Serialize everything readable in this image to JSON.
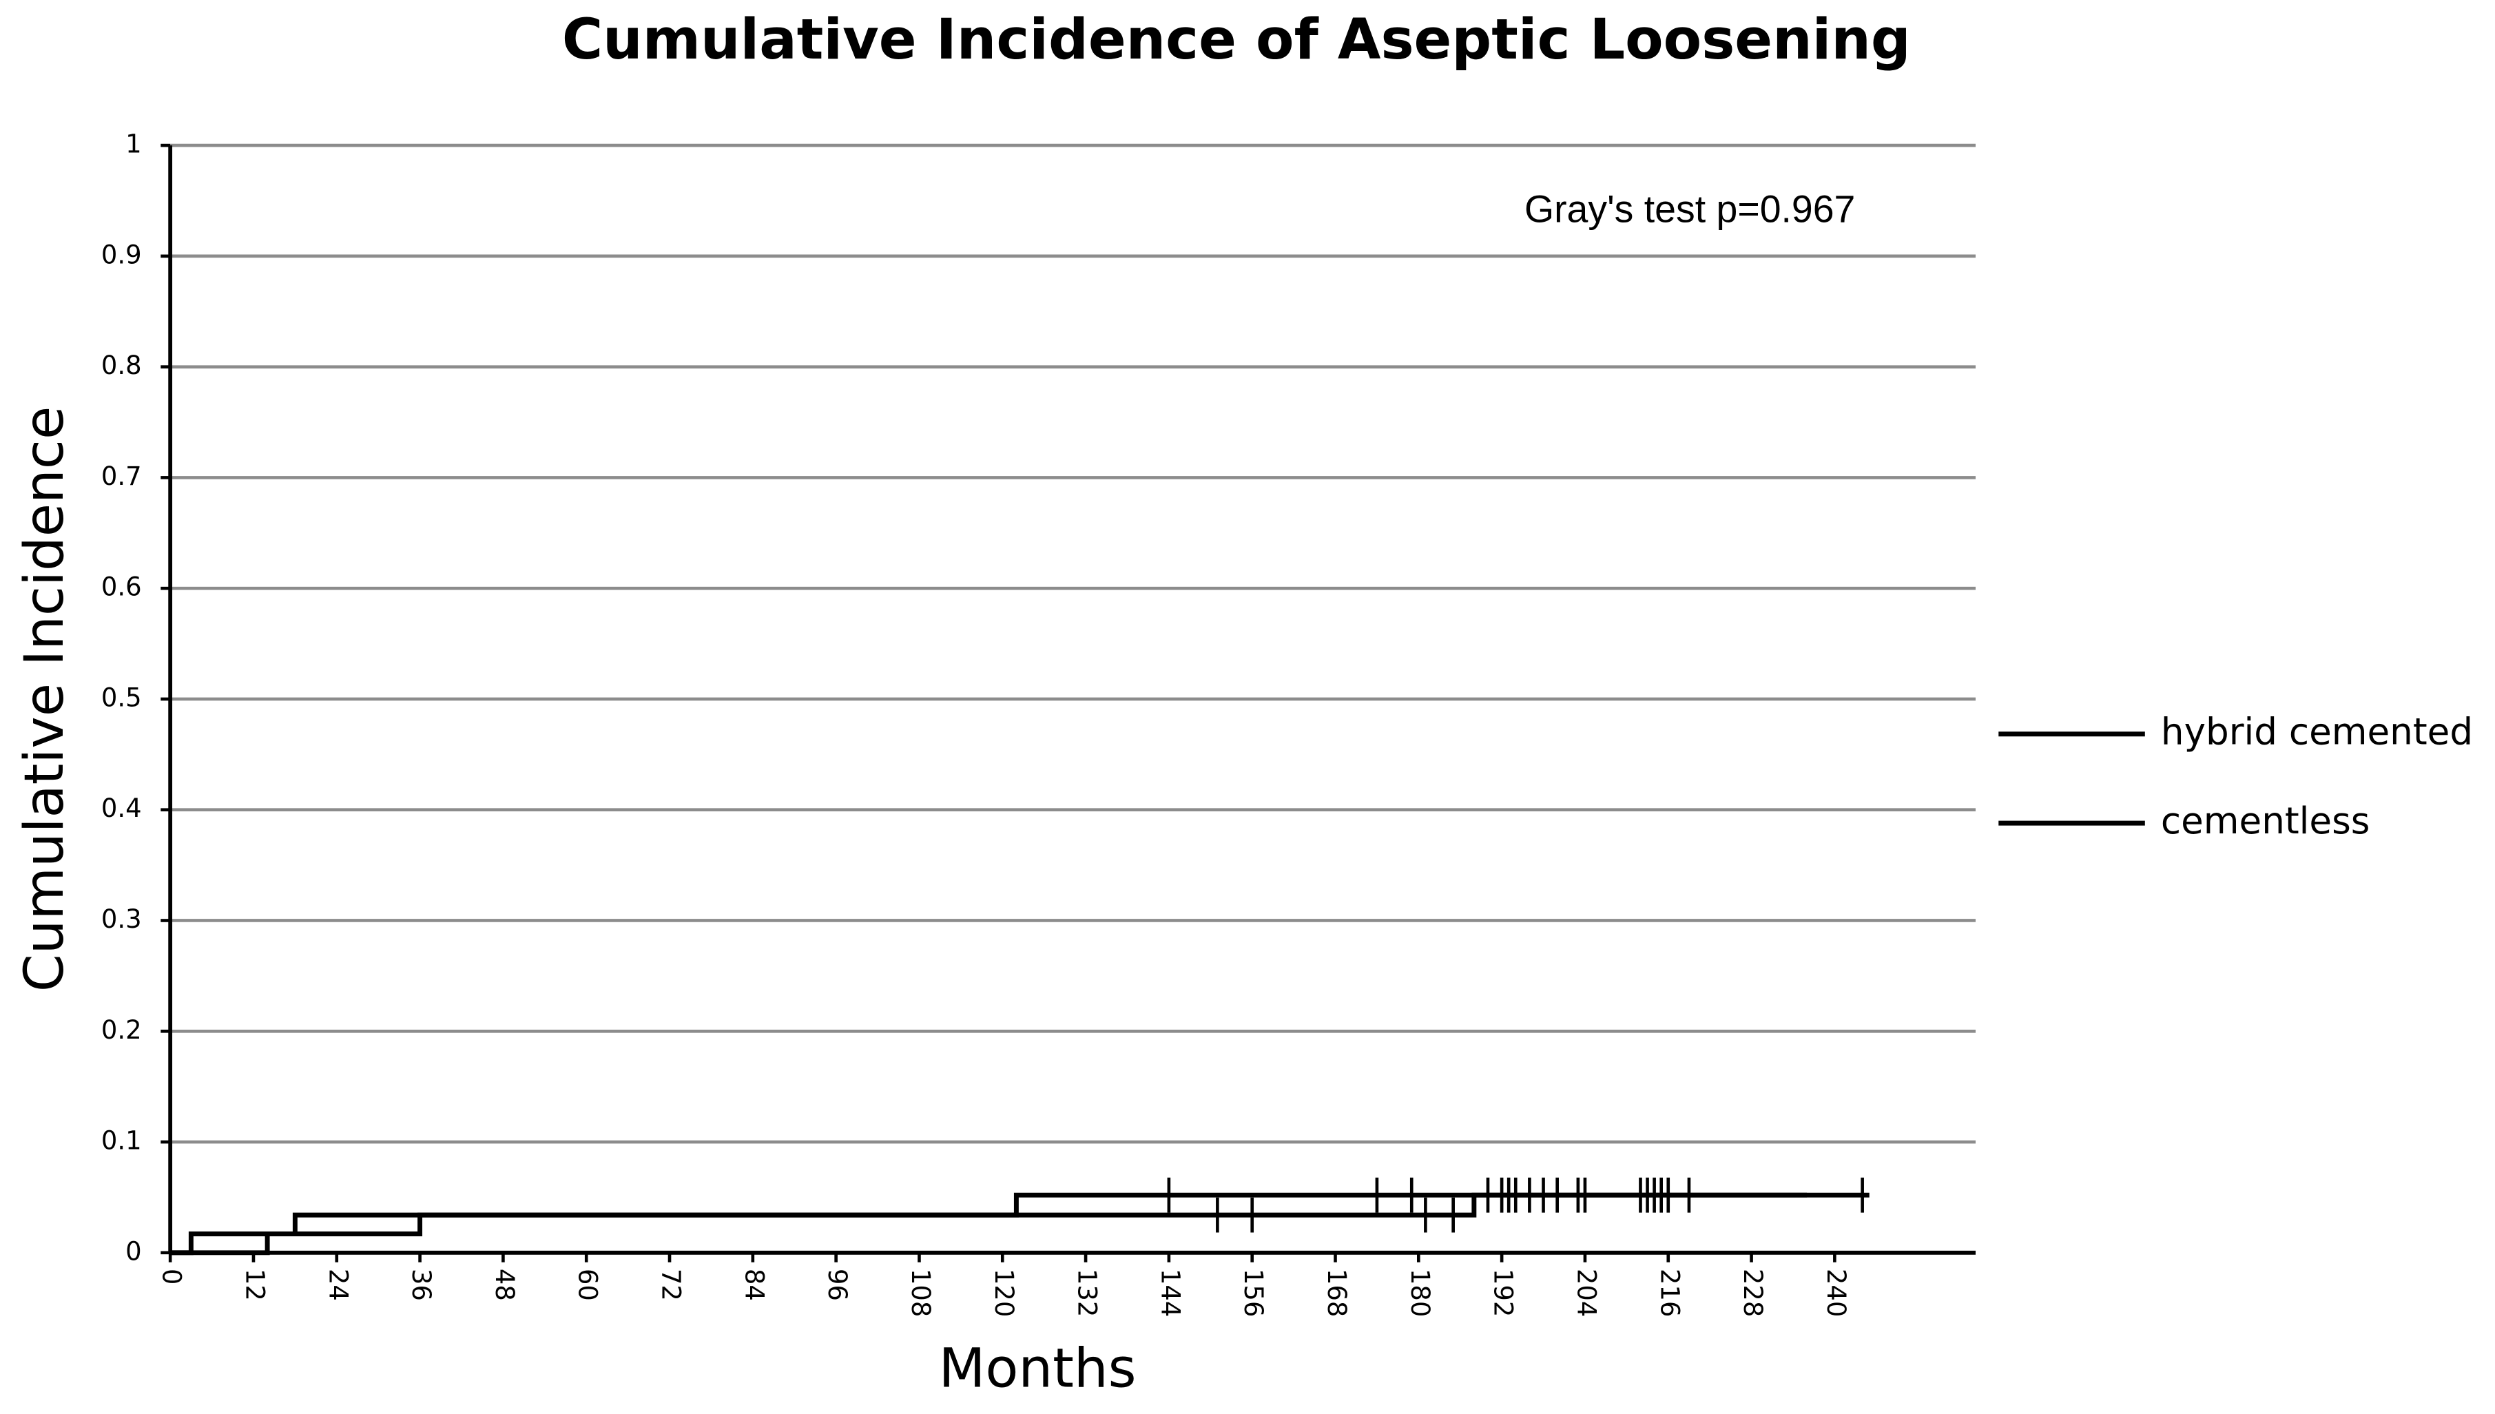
{
  "chart_data": {
    "type": "step",
    "title": "Cumulative Incidence of Aseptic Loosening",
    "annotation": "Gray's test p=0.967",
    "xlabel": "Months",
    "ylabel": "Cumulative Incidence",
    "xlim": [
      0,
      250
    ],
    "ylim": [
      0,
      1
    ],
    "xticks": [
      0,
      12,
      24,
      36,
      48,
      60,
      72,
      84,
      96,
      108,
      120,
      132,
      144,
      156,
      168,
      180,
      192,
      204,
      216,
      228,
      240
    ],
    "yticks": [
      0,
      0.1,
      0.2,
      0.3,
      0.4,
      0.5,
      0.6,
      0.7,
      0.8,
      0.9,
      1
    ],
    "grid": true,
    "legend": "right",
    "series": [
      {
        "name": "hybrid cemented",
        "color": "#000000",
        "x": [
          0,
          3,
          36,
          188,
          236
        ],
        "values": [
          0,
          0.017,
          0.034,
          0.052,
          0.052
        ],
        "censored": [
          151,
          156,
          181,
          185
        ]
      },
      {
        "name": "cementless",
        "color": "#000000",
        "x": [
          0,
          14,
          18,
          122,
          245
        ],
        "values": [
          0,
          0.017,
          0.034,
          0.052,
          0.052
        ],
        "censored": [
          144,
          174,
          179,
          190,
          192,
          193,
          194,
          196,
          198,
          200,
          203,
          204,
          212,
          213,
          214,
          215,
          216,
          219,
          244
        ]
      }
    ]
  }
}
